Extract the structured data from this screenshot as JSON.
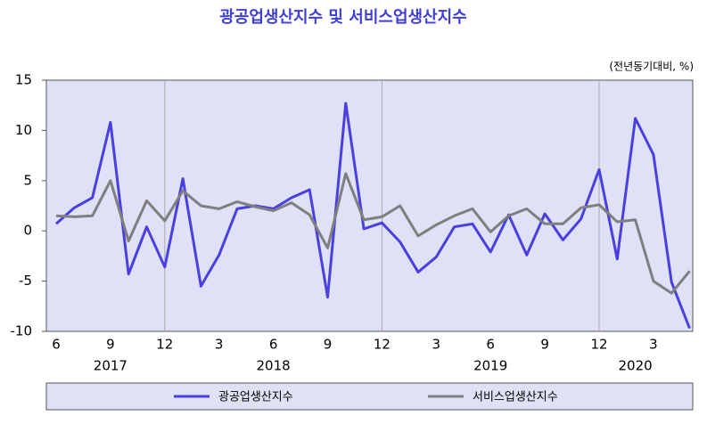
{
  "chart_data": {
    "type": "line",
    "title": "광공업생산지수  및  서비스업생산지수",
    "unit_label": "(전년동기대비,   %)",
    "categories": [
      "6",
      null,
      null,
      "9",
      null,
      null,
      "12",
      null,
      null,
      "3",
      null,
      null,
      "6",
      null,
      null,
      "9",
      null,
      null,
      "12",
      null,
      null,
      "3",
      null,
      null,
      "6",
      null,
      null,
      "9",
      null,
      null,
      "12",
      null,
      null,
      "3",
      null,
      null
    ],
    "year_labels": [
      null,
      null,
      null,
      "2017",
      null,
      null,
      null,
      null,
      null,
      null,
      null,
      null,
      "2018",
      null,
      null,
      null,
      null,
      null,
      null,
      null,
      null,
      null,
      null,
      null,
      "2019",
      null,
      null,
      null,
      null,
      null,
      null,
      null,
      "2020",
      null,
      null,
      null
    ],
    "series": [
      {
        "name": "광공업생산지수",
        "color": "#4b3fe0",
        "values": [
          0.7,
          2.3,
          3.3,
          10.8,
          -4.3,
          0.4,
          -3.6,
          5.2,
          -5.5,
          -2.4,
          2.2,
          2.5,
          2.2,
          3.3,
          4.1,
          -6.6,
          12.7,
          0.2,
          0.8,
          -1.1,
          -4.1,
          -2.6,
          0.4,
          0.7,
          -2.1,
          1.6,
          -2.4,
          1.7,
          -0.9,
          1.2,
          6.1,
          -2.8,
          11.2,
          7.6,
          -5.1,
          -9.7
        ]
      },
      {
        "name": "서비스업생산지수",
        "color": "#7f7f7f",
        "values": [
          1.5,
          1.4,
          1.5,
          5.0,
          -1.0,
          3.0,
          1.0,
          4.0,
          2.5,
          2.2,
          2.9,
          2.4,
          2.0,
          2.8,
          1.6,
          -1.7,
          5.7,
          1.1,
          1.4,
          2.5,
          -0.5,
          0.6,
          1.5,
          2.2,
          -0.1,
          1.5,
          2.2,
          0.7,
          0.7,
          2.3,
          2.6,
          0.9,
          1.1,
          -5.0,
          -6.2,
          -4.0
        ]
      }
    ],
    "ylim": [
      -10,
      15
    ],
    "yticks": [
      -10,
      -5,
      0,
      5,
      10,
      15
    ]
  }
}
